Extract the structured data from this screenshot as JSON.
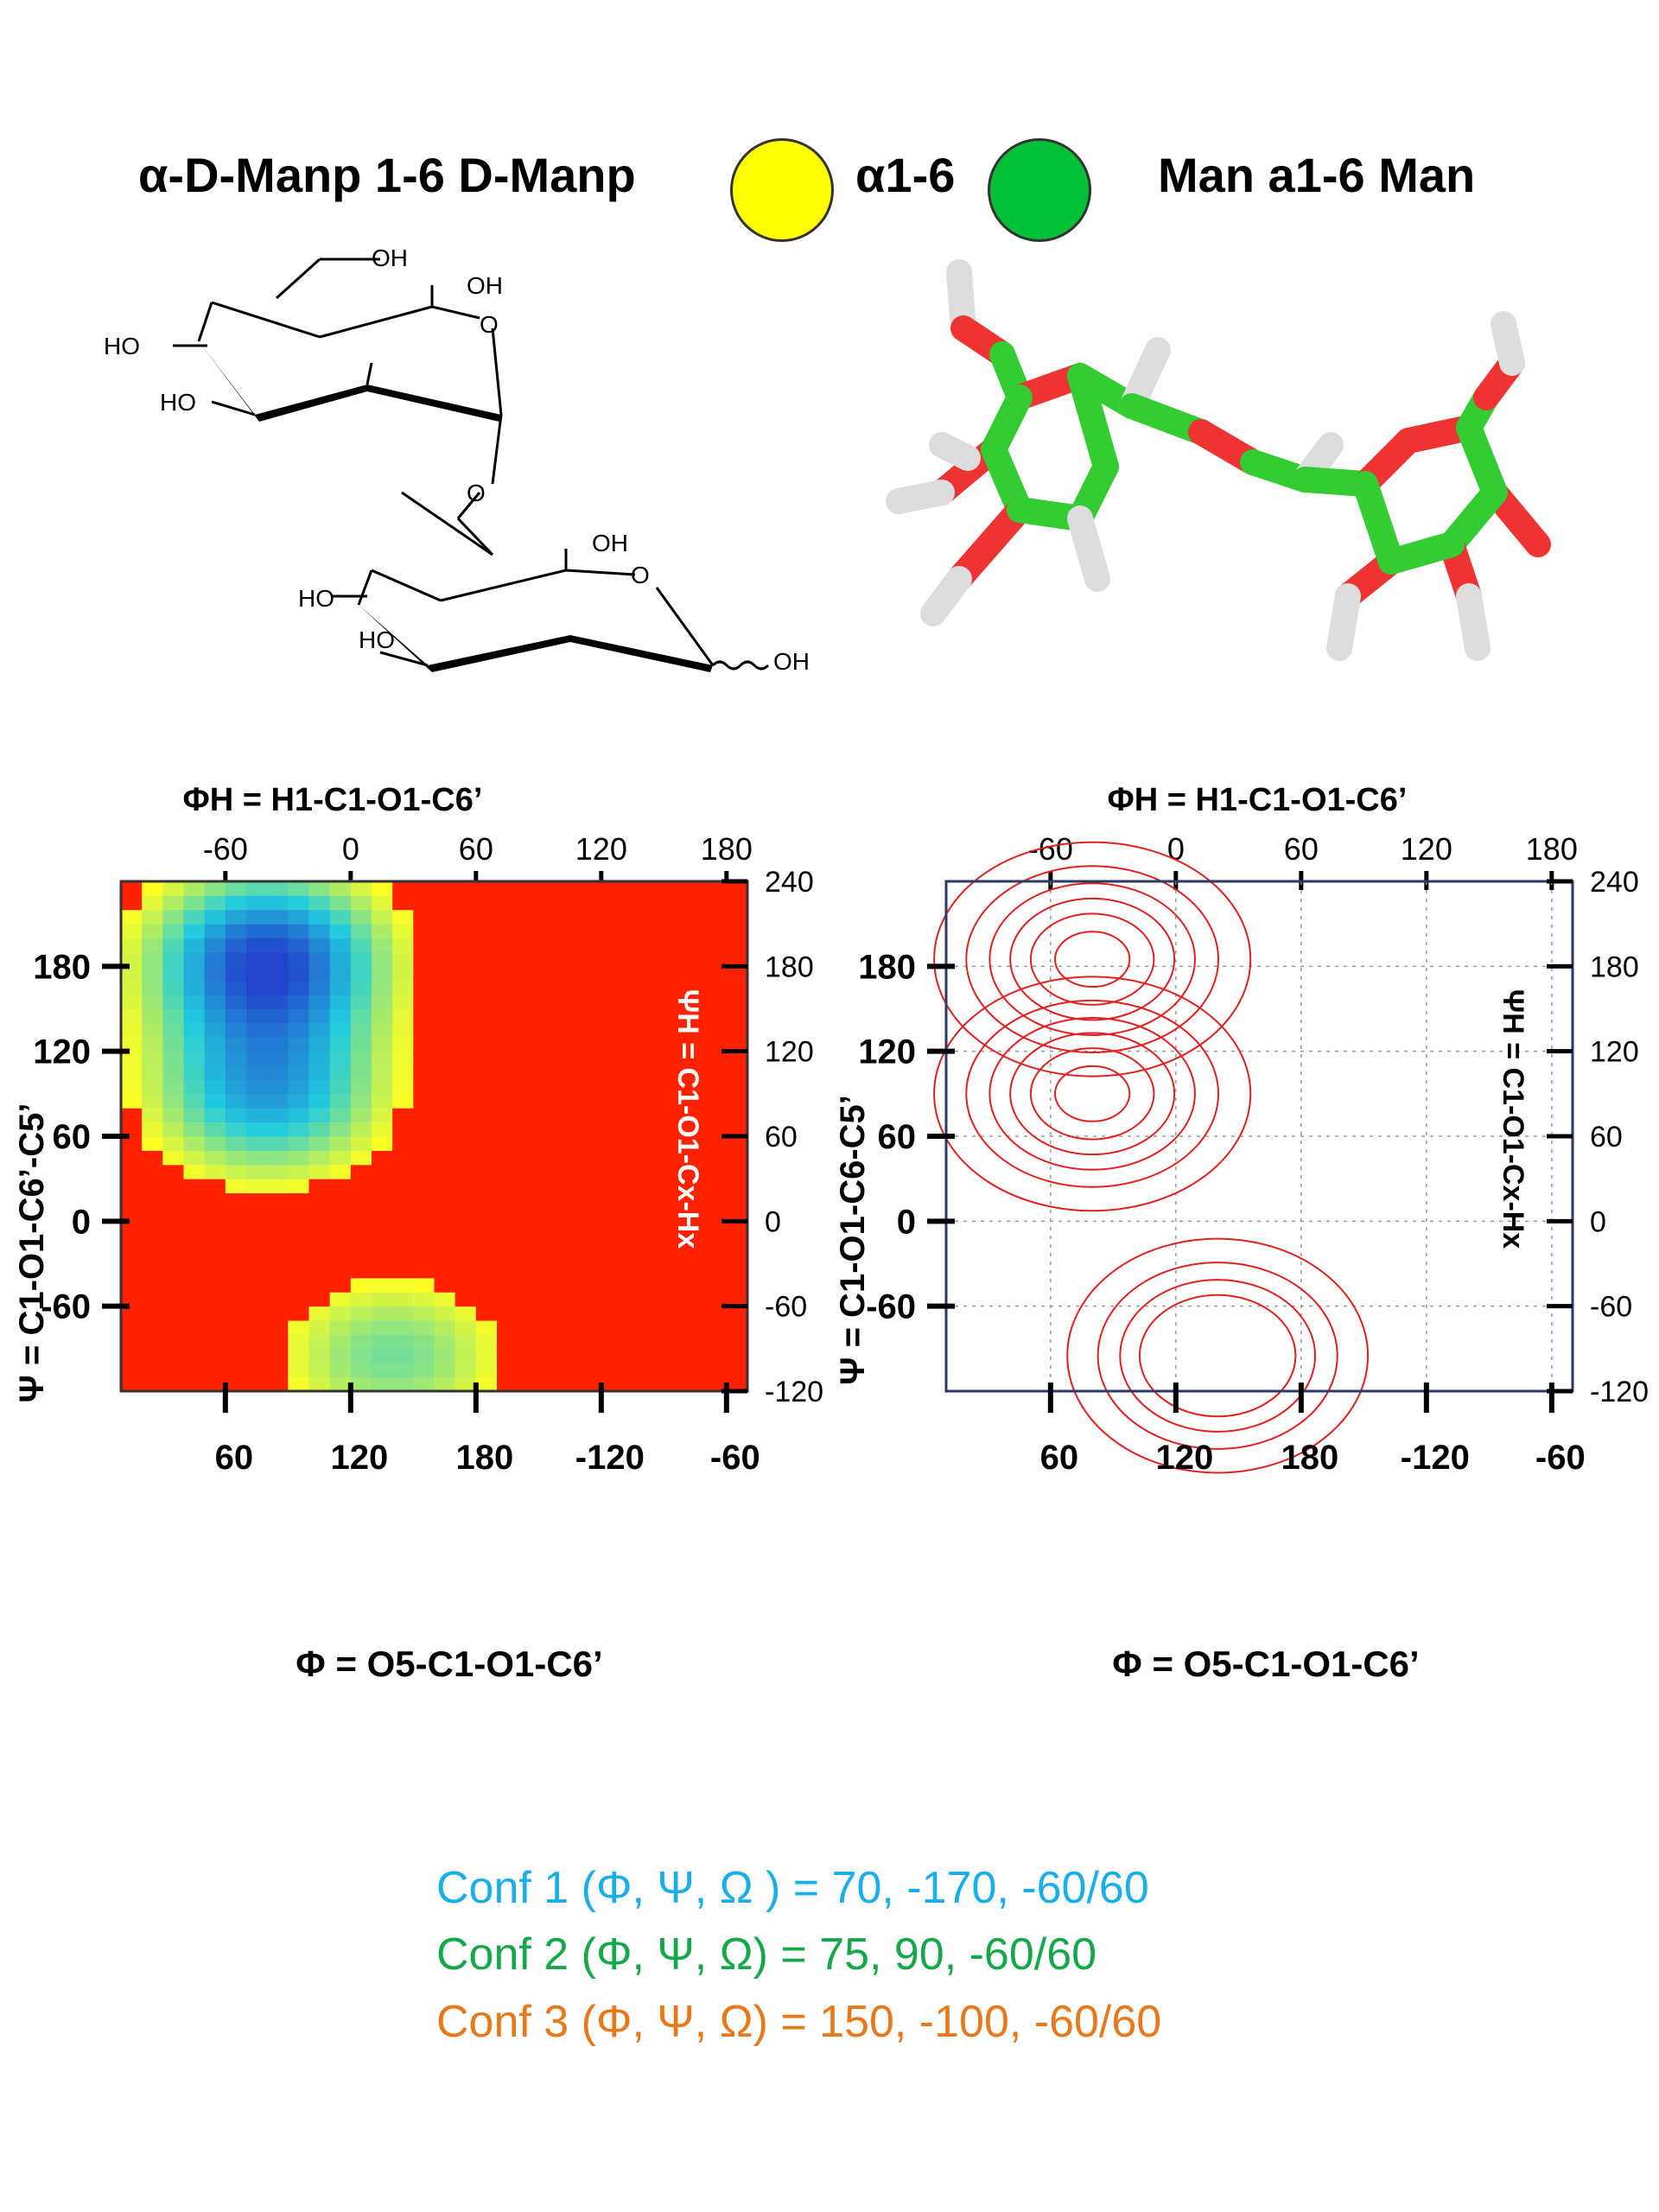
{
  "header": {
    "left_title": "α-D-Manp 1-6 D-Manp",
    "linkage_label": "α1-6",
    "right_title": "Man a1-6 Man",
    "colors": {
      "donor_circle": "#ffff00",
      "acceptor_circle": "#00c037"
    }
  },
  "structure_2d": {
    "labels": [
      "OH",
      "OH",
      "HO",
      "HO",
      "O",
      "O",
      "OH",
      "HO",
      "O",
      "HO",
      "OH"
    ]
  },
  "chart_data": [
    {
      "type": "heatmap",
      "top_axis_title": "ΦH = H1-C1-O1-C6’",
      "top_ticks": [
        "-60",
        "0",
        "60",
        "120",
        "180"
      ],
      "left_axis_title": "Ψ = C1-O1-C6’-C5’",
      "left_ticks": [
        "180",
        "120",
        "60",
        "0",
        "-60"
      ],
      "right_axis_title": "ΨH = C1-O1-Cx-Hx",
      "right_ticks": [
        "240",
        "180",
        "120",
        "60",
        "0",
        "-60",
        "-120"
      ],
      "bottom_axis_title": "Φ = O5-C1-O1-C6’",
      "bottom_ticks": [
        "60",
        "120",
        "180",
        "-120",
        "-60"
      ],
      "x_range": [
        10,
        310
      ],
      "y_range": [
        -120,
        240
      ],
      "colormap": [
        "#ff2200",
        "#ffff22",
        "#22ccdd",
        "#2244cc"
      ],
      "density_peaks": [
        {
          "phi": 80,
          "psi": 185,
          "level": 1.0
        },
        {
          "phi": 80,
          "psi": 90,
          "level": 0.7
        },
        {
          "phi": 140,
          "psi": -95,
          "level": 0.45
        }
      ]
    },
    {
      "type": "contour",
      "top_axis_title": "ΦH = H1-C1-O1-C6’",
      "top_ticks": [
        "-60",
        "0",
        "60",
        "120",
        "180"
      ],
      "left_axis_title": "Ψ = C1-O1-C6-C5’",
      "left_ticks": [
        "180",
        "120",
        "60",
        "0",
        "-60"
      ],
      "right_axis_title": "ΨH = C1-O1-Cx-Hx",
      "right_ticks": [
        "240",
        "180",
        "120",
        "60",
        "0",
        "-60",
        "-120"
      ],
      "bottom_axis_title": "Φ = O5-C1-O1-C6’",
      "bottom_ticks": [
        "60",
        "120",
        "180",
        "-120",
        "-60"
      ],
      "x_range": [
        10,
        310
      ],
      "y_range": [
        -120,
        240
      ],
      "grid": true,
      "line_color": "#e02020",
      "density_peaks": [
        {
          "phi": 80,
          "psi": 185
        },
        {
          "phi": 80,
          "psi": 90
        },
        {
          "phi": 140,
          "psi": -95
        }
      ]
    }
  ],
  "conformers": [
    {
      "label": "Conf 1 (Φ, Ψ, Ω ) = 70, -170, -60/60",
      "color": "#1aaee8"
    },
    {
      "label": "Conf 2 (Φ, Ψ, Ω) =  75, 90, -60/60",
      "color": "#14a84a"
    },
    {
      "label": "Conf 3 (Φ, Ψ, Ω) = 150, -100, -60/60",
      "color": "#e8781a"
    }
  ]
}
